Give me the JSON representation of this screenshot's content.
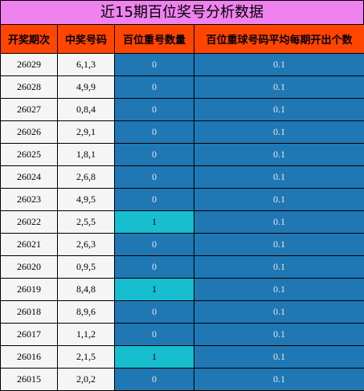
{
  "title": "近15期百位奖号分析数据",
  "headers": [
    "开奖期次",
    "中奖号码",
    "百位重号数量",
    "百位重球号码平均每期开出个数"
  ],
  "rows": [
    {
      "issue": "26029",
      "number": "6,1,3",
      "repeat": "0",
      "avg": "0.1"
    },
    {
      "issue": "26028",
      "number": "4,9,9",
      "repeat": "0",
      "avg": "0.1"
    },
    {
      "issue": "26027",
      "number": "0,8,4",
      "repeat": "0",
      "avg": "0.1"
    },
    {
      "issue": "26026",
      "number": "2,9,1",
      "repeat": "0",
      "avg": "0.1"
    },
    {
      "issue": "26025",
      "number": "1,8,1",
      "repeat": "0",
      "avg": "0.1"
    },
    {
      "issue": "26024",
      "number": "2,6,8",
      "repeat": "0",
      "avg": "0.1"
    },
    {
      "issue": "26023",
      "number": "4,9,5",
      "repeat": "0",
      "avg": "0.1"
    },
    {
      "issue": "26022",
      "number": "2,5,5",
      "repeat": "1",
      "avg": "0.1"
    },
    {
      "issue": "26021",
      "number": "2,6,3",
      "repeat": "0",
      "avg": "0.1"
    },
    {
      "issue": "26020",
      "number": "0,9,5",
      "repeat": "0",
      "avg": "0.1"
    },
    {
      "issue": "26019",
      "number": "8,4,8",
      "repeat": "1",
      "avg": "0.1"
    },
    {
      "issue": "26018",
      "number": "8,9,6",
      "repeat": "0",
      "avg": "0.1"
    },
    {
      "issue": "26017",
      "number": "1,1,2",
      "repeat": "0",
      "avg": "0.1"
    },
    {
      "issue": "26016",
      "number": "2,1,5",
      "repeat": "1",
      "avg": "0.1"
    },
    {
      "issue": "26015",
      "number": "2,0,2",
      "repeat": "0",
      "avg": "0.1"
    }
  ],
  "colors": {
    "title_bg": "#ee82ee",
    "header_bg": "#ff4500",
    "cell_light": "#f5f5f5",
    "cell_blue": "#1f78b4",
    "cell_highlight": "#17becf"
  }
}
